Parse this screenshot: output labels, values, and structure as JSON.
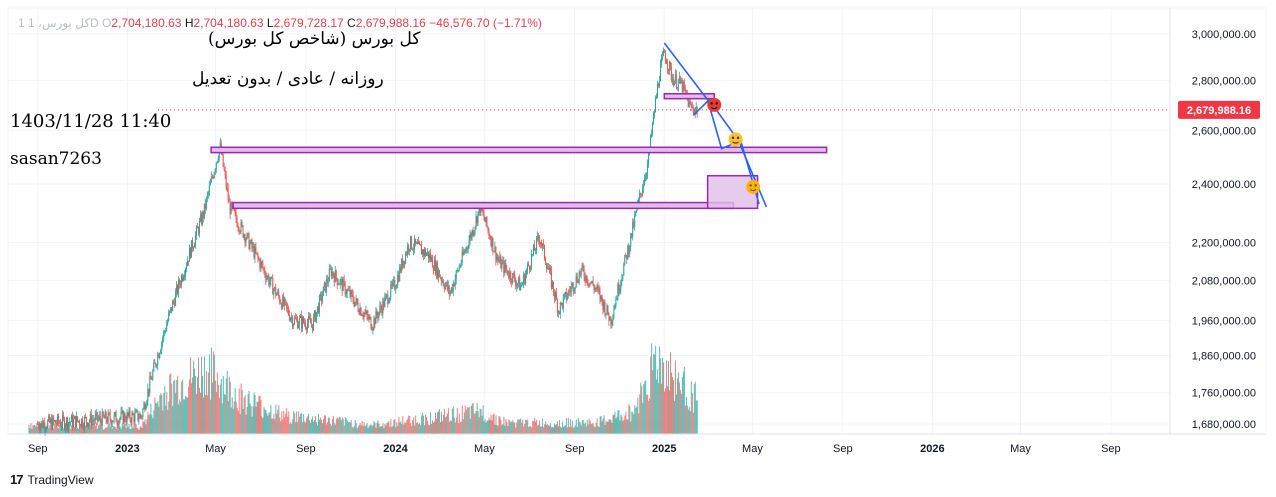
{
  "header": {
    "ticker_dim": "1 کل بورس، 1D",
    "o_label": "O",
    "o_value": "2,704,180.63",
    "h_label": "H",
    "h_value": "2,704,180.63",
    "l_label": "L",
    "l_value": "2,679,728.17",
    "c_label": "C",
    "c_value": "2,679,988.16",
    "change": "−46,576.70 (−1.71%)"
  },
  "watermark": {
    "line1": "کل بورس (شاخص کل بورس)",
    "line2": "روزانه / عادی / بدون تعدیل",
    "line3": "1403/11/28 11:40",
    "line4": "sasan7263"
  },
  "footer": {
    "logo": "17",
    "brand": "TradingView"
  },
  "colors": {
    "up": "#26a69a",
    "down": "#ef5350",
    "zone": "#9c27b0",
    "zone_fill": "#e1bee7",
    "arrow": "#2962ff",
    "price_tag": "#f23645"
  },
  "chart_data": {
    "type": "candlestick",
    "title": "",
    "y_scale": "log",
    "ylim": [
      1650000,
      3080000
    ],
    "y_ticks": [
      "3,000,000.00",
      "2,800,000.00",
      "2,600,000.00",
      "2,400,000.00",
      "2,200,000.00",
      "2,080,000.00",
      "1,960,000.00",
      "1,860,000.00",
      "1,760,000.00",
      "1,680,000.00"
    ],
    "x_ticks": [
      "Sep",
      "2023",
      "May",
      "Sep",
      "2024",
      "May",
      "Sep",
      "2025",
      "May",
      "Sep",
      "2026",
      "May",
      "Sep"
    ],
    "last_price": 2679988.16,
    "last_price_label": "2,679,988.16",
    "anchors": [
      [
        "2022-09-01",
        1680000
      ],
      [
        "2023-01-20",
        1700000
      ],
      [
        "2023-02-25",
        1960000
      ],
      [
        "2023-04-15",
        2300000
      ],
      [
        "2023-05-07",
        2540000
      ],
      [
        "2023-05-20",
        2320000
      ],
      [
        "2023-06-20",
        2180000
      ],
      [
        "2023-07-20",
        2050000
      ],
      [
        "2023-08-15",
        1960000
      ],
      [
        "2023-09-10",
        1950000
      ],
      [
        "2023-10-05",
        2110000
      ],
      [
        "2023-11-05",
        2020000
      ],
      [
        "2023-11-30",
        1950000
      ],
      [
        "2024-01-01",
        2070000
      ],
      [
        "2024-01-20",
        2200000
      ],
      [
        "2024-02-15",
        2160000
      ],
      [
        "2024-03-15",
        2040000
      ],
      [
        "2024-04-15",
        2240000
      ],
      [
        "2024-04-25",
        2320000
      ],
      [
        "2024-05-20",
        2140000
      ],
      [
        "2024-06-20",
        2060000
      ],
      [
        "2024-07-15",
        2220000
      ],
      [
        "2024-08-10",
        1990000
      ],
      [
        "2024-09-10",
        2110000
      ],
      [
        "2024-10-01",
        2050000
      ],
      [
        "2024-10-20",
        1960000
      ],
      [
        "2024-11-15",
        2200000
      ],
      [
        "2024-12-10",
        2480000
      ],
      [
        "2024-12-25",
        2820000
      ],
      [
        "2025-01-01",
        2920000
      ],
      [
        "2025-01-12",
        2810000
      ],
      [
        "2025-01-25",
        2780000
      ],
      [
        "2025-02-05",
        2690000
      ],
      [
        "2025-02-16",
        2679988
      ]
    ],
    "volume_pattern": [
      [
        "2022-08-20",
        0.12
      ],
      [
        "2023-01-20",
        0.1
      ],
      [
        "2023-02-20",
        0.55
      ],
      [
        "2023-04-20",
        0.85
      ],
      [
        "2023-06-01",
        0.5
      ],
      [
        "2023-08-01",
        0.25
      ],
      [
        "2023-12-01",
        0.12
      ],
      [
        "2024-04-25",
        0.3
      ],
      [
        "2024-06-01",
        0.15
      ],
      [
        "2024-10-01",
        0.15
      ],
      [
        "2024-11-20",
        0.3
      ],
      [
        "2024-12-20",
        1.0
      ],
      [
        "2025-02-16",
        0.45
      ]
    ],
    "annotations": {
      "resistance_zones": [
        {
          "start": "2025-01-01",
          "end": "2025-03-10",
          "high": 2745000,
          "low": 2725000
        },
        {
          "start": "2023-04-25",
          "end": "2025-08-10",
          "high": 2535000,
          "low": 2515000
        },
        {
          "start": "2023-05-25",
          "end": "2025-04-05",
          "high": 2335000,
          "low": 2315000
        }
      ],
      "target_box": {
        "start": "2025-03-01",
        "end": "2025-05-08",
        "high": 2430000,
        "low": 2315000
      },
      "projected_path": [
        [
          "2025-01-01",
          2960000
        ],
        [
          "2025-03-01",
          2720000
        ],
        [
          "2025-03-20",
          2530000
        ],
        [
          "2025-04-15",
          2560000
        ],
        [
          "2025-05-10",
          2330000
        ]
      ],
      "secondary_path": [
        [
          "2025-02-10",
          2660000
        ],
        [
          "2025-03-03",
          2720000
        ],
        [
          "2025-04-12",
          2560000
        ],
        [
          "2025-05-20",
          2320000
        ]
      ],
      "emojis": [
        {
          "date": "2025-03-10",
          "price": 2700000,
          "icon": "angry-face-icon",
          "bg": "#e53935",
          "eyes": "#111111"
        },
        {
          "date": "2025-04-08",
          "price": 2565000,
          "icon": "monocle-face-icon",
          "bg": "#fbc02d",
          "eyes": "#3e2723"
        },
        {
          "date": "2025-05-02",
          "price": 2390000,
          "icon": "smiling-face-icon",
          "bg": "#ffb300",
          "eyes": "#6d4c41"
        }
      ]
    }
  }
}
